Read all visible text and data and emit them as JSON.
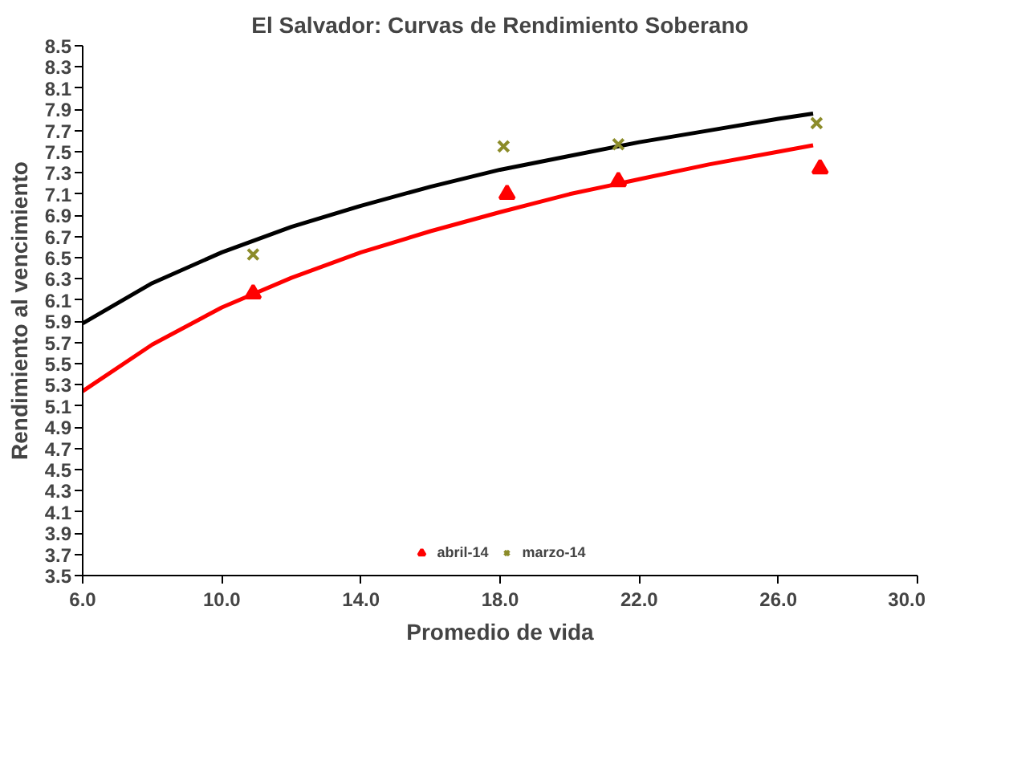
{
  "chart_data": {
    "type": "scatter",
    "title": "El Salvador: Curvas de Rendimiento Soberano",
    "xlabel": "Promedio de vida",
    "ylabel": "Rendimiento al vencimiento",
    "xlim": [
      6,
      30
    ],
    "xticks": [
      {
        "value": 6,
        "label": "6.0"
      },
      {
        "value": 10,
        "label": "10.0"
      },
      {
        "value": 14,
        "label": "14.0"
      },
      {
        "value": 18,
        "label": "18.0"
      },
      {
        "value": 22,
        "label": "22.0"
      },
      {
        "value": 26,
        "label": "26.0"
      },
      {
        "value": 30,
        "label": "30.0"
      }
    ],
    "ylim": [
      3.5,
      8.5
    ],
    "yticks": [
      3.5,
      3.7,
      3.9,
      4.1,
      4.3,
      4.5,
      4.7,
      4.9,
      5.1,
      5.3,
      5.5,
      5.7,
      5.9,
      6.1,
      6.3,
      6.5,
      6.7,
      6.9,
      7.1,
      7.3,
      7.5,
      7.7,
      7.9,
      8.1,
      8.3,
      8.5
    ],
    "legend": "bottom",
    "series": [
      {
        "name": "abril-14",
        "marker": "triangle",
        "color": "#ff0000",
        "x": [
          10.9,
          18.2,
          21.4,
          27.2
        ],
        "values": [
          6.16,
          7.1,
          7.22,
          7.34
        ]
      },
      {
        "name": "marzo-14",
        "marker": "cross",
        "color": "#8c8c2a",
        "x": [
          10.9,
          18.1,
          21.4,
          27.1
        ],
        "values": [
          6.53,
          7.55,
          7.57,
          7.77
        ]
      },
      {
        "type": "line",
        "color": "#ff0000",
        "x": [
          6,
          8,
          10,
          12,
          14,
          16,
          18,
          20,
          22,
          24,
          26,
          27
        ],
        "values": [
          5.24,
          5.68,
          6.03,
          6.31,
          6.55,
          6.75,
          6.93,
          7.1,
          7.24,
          7.38,
          7.5,
          7.56
        ]
      },
      {
        "type": "line",
        "color": "#000000",
        "x": [
          6,
          8,
          10,
          12,
          14,
          16,
          18,
          20,
          22,
          24,
          26,
          27
        ],
        "values": [
          5.88,
          6.26,
          6.55,
          6.79,
          6.99,
          7.17,
          7.33,
          7.46,
          7.59,
          7.7,
          7.81,
          7.86
        ]
      }
    ]
  }
}
